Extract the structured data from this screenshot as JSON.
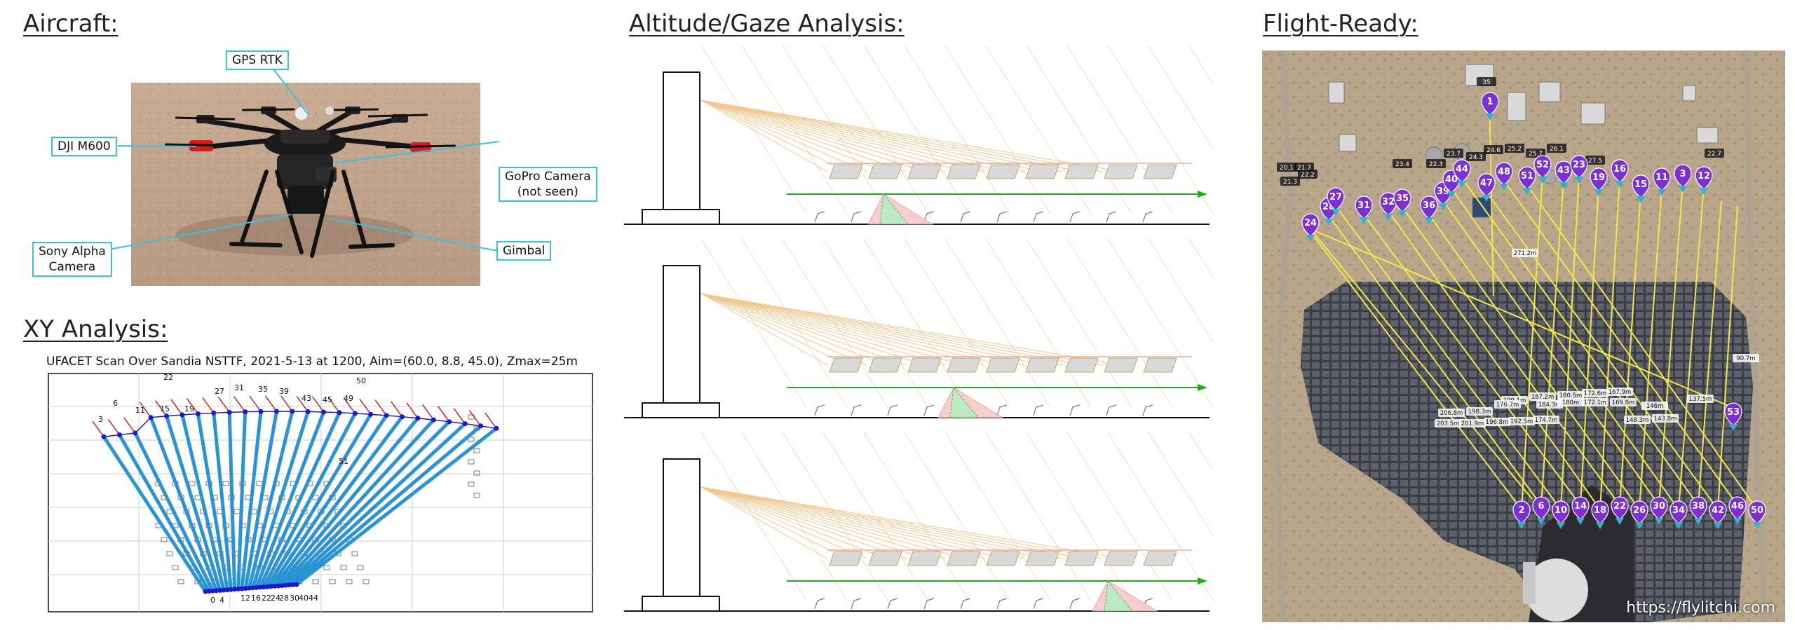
{
  "sections": {
    "aircraft": "Aircraft:",
    "xy": "XY Analysis:",
    "altitude": "Altitude/Gaze Analysis:",
    "flight": "Flight-Ready:"
  },
  "aircraft_labels": {
    "gps": "GPS RTK",
    "dji": "DJI M600",
    "gopro_line1": "GoPro Camera",
    "gopro_line2": "(not seen)",
    "sony_line1": "Sony Alpha",
    "sony_line2": "Camera",
    "gimbal": "Gimbal"
  },
  "xy_chart": {
    "title": "UFACET Scan Over Sandia NSTTF, 2021-5-13 at 1200, Aim=(60.0, 8.8, 45.0), Zmax=25m",
    "labels": [
      "3",
      "6",
      "11",
      "15",
      "19",
      "22",
      "27",
      "31",
      "35",
      "39",
      "43",
      "45",
      "49",
      "50",
      "51",
      "0",
      "4",
      "12",
      "16",
      "22",
      "24",
      "28",
      "30",
      "40",
      "44"
    ]
  },
  "flight_map": {
    "credit": "https://flylitchi.com",
    "top_markers": [
      "24",
      "28",
      "27",
      "31",
      "32",
      "35",
      "36",
      "39",
      "40",
      "44",
      "47",
      "48",
      "51",
      "52",
      "43",
      "23",
      "19",
      "16",
      "15",
      "11",
      "3",
      "12"
    ],
    "bottom_markers": [
      "2",
      "6",
      "10",
      "14",
      "18",
      "22",
      "26",
      "30",
      "34",
      "38",
      "42",
      "46",
      "50"
    ],
    "right_markers": [
      "53"
    ],
    "top_single": "1",
    "alt_labels": [
      "22.3",
      "23.7",
      "24.3",
      "24.6",
      "25.2",
      "25.7",
      "26.1",
      "27.5",
      "22.7",
      "21.7",
      "23.4",
      "20.1",
      "21.3",
      "22.2",
      "35"
    ],
    "dist_labels": [
      "271.2m",
      "199.1m",
      "187.2m",
      "180.5m",
      "172.6m",
      "167.9m",
      "206.8m",
      "198.3m",
      "176.7m",
      "184.3m",
      "203.5m",
      "201.9m",
      "196.8m",
      "192.5m",
      "174.7m",
      "180m",
      "172.1m",
      "169.8m",
      "146m",
      "137.5m",
      "148.3m",
      "143.8m",
      "90.7m"
    ]
  }
}
